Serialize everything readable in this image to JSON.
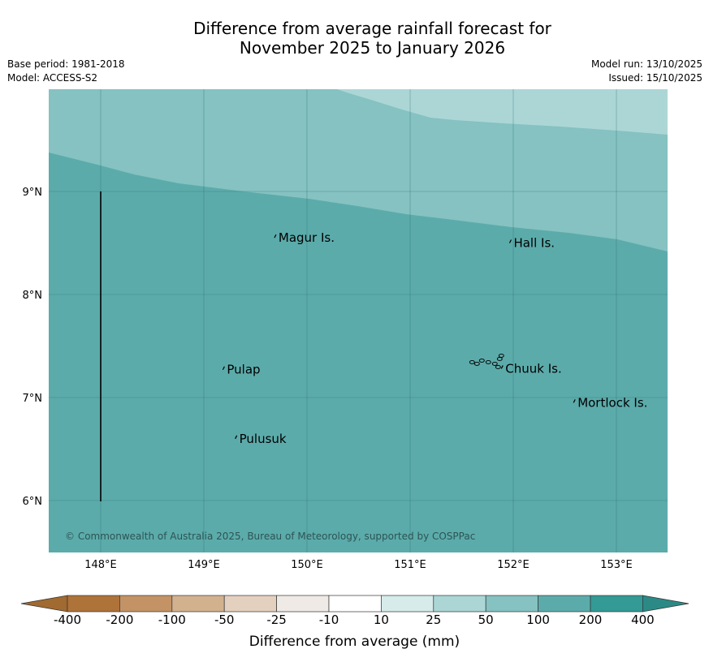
{
  "title_line1": "Difference from average rainfall forecast for",
  "title_line2": "November 2025 to January 2026",
  "meta_left": [
    "Base period: 1981-2018",
    "Model: ACCESS-S2"
  ],
  "meta_right": [
    "Model run: 13/10/2025",
    "Issued: 15/10/2025"
  ],
  "map": {
    "lon_range": [
      147.5,
      153.5
    ],
    "lat_range": [
      5.5,
      10.0
    ],
    "lon_ticks": [
      {
        "value": 148,
        "label": "148°E"
      },
      {
        "value": 149,
        "label": "149°E"
      },
      {
        "value": 150,
        "label": "150°E"
      },
      {
        "value": 151,
        "label": "151°E"
      },
      {
        "value": 152,
        "label": "152°E"
      },
      {
        "value": 153,
        "label": "153°E"
      }
    ],
    "lat_ticks": [
      {
        "value": 9,
        "label": "9°N"
      },
      {
        "value": 8,
        "label": "8°N"
      },
      {
        "value": 7,
        "label": "7°N"
      },
      {
        "value": 6,
        "label": "6°N"
      }
    ],
    "grid": true,
    "fill_colors": {
      "band_25_50": "#acd6d6",
      "band_50_100": "#85c2c1",
      "band_100_200": "#5cabab"
    },
    "places": [
      {
        "name": "Magur Is.",
        "lon": 149.7,
        "lat": 8.55
      },
      {
        "name": "Hall Is.",
        "lon": 151.98,
        "lat": 8.5
      },
      {
        "name": "Pulap",
        "lon": 149.2,
        "lat": 7.27
      },
      {
        "name": "Chuuk Is.",
        "lon": 151.9,
        "lat": 7.28
      },
      {
        "name": "Mortlock Is.",
        "lon": 152.6,
        "lat": 6.95
      },
      {
        "name": "Pulusuk",
        "lon": 149.32,
        "lat": 6.6
      }
    ],
    "copyright": "© Commonwealth of Australia 2025, Bureau of Meteorology, supported by COSPPac"
  },
  "colorbar": {
    "title": "Difference from average (mm)",
    "boundaries": [
      "-400",
      "-200",
      "-100",
      "-50",
      "-25",
      "-10",
      "10",
      "25",
      "50",
      "100",
      "200",
      "400"
    ],
    "colors": [
      "#ae7339",
      "#c39365",
      "#d2b18f",
      "#e4d0be",
      "#efeae6",
      "#ffffff",
      "#d7ebeb",
      "#acd6d6",
      "#85c2c1",
      "#5cabab",
      "#339a95"
    ],
    "extend_low_color": "#a06a30",
    "extend_high_color": "#2b8a85"
  }
}
